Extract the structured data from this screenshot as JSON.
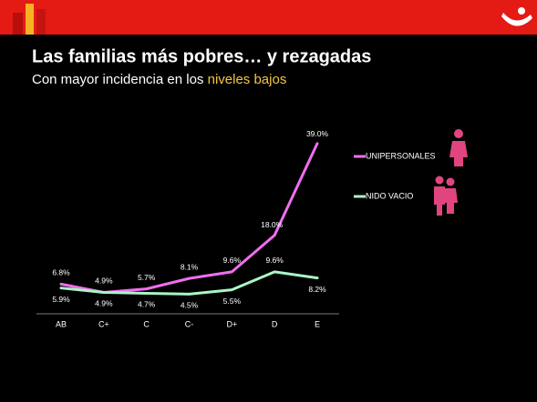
{
  "chart_data": {
    "type": "line",
    "title": "Las familias más pobres… y rezagadas",
    "subtitle": [
      "Con mayor incidencia en los",
      "niveles bajos"
    ],
    "categories": [
      "AB",
      "C+",
      "C",
      "C-",
      "D+",
      "D",
      "E"
    ],
    "series": [
      {
        "name": "UNIPERSONALES",
        "color": "#f06ef0",
        "values": [
          6.8,
          4.9,
          5.7,
          8.1,
          9.6,
          18.0,
          39.0
        ],
        "value_labels": [
          "6.8%",
          "4.9%",
          "5.7%",
          "8.1%",
          "9.6%",
          "18.0%",
          "39.0%"
        ]
      },
      {
        "name": "NIDO VACIO",
        "color": "#a9f5c6",
        "values": [
          5.9,
          4.9,
          4.7,
          4.5,
          5.5,
          9.6,
          8.2
        ],
        "value_labels": [
          "5.9%",
          "4.9%",
          "4.7%",
          "4.5%",
          "5.5%",
          "9.6%",
          "8.2%"
        ]
      }
    ],
    "ylim": [
      0,
      40
    ]
  }
}
